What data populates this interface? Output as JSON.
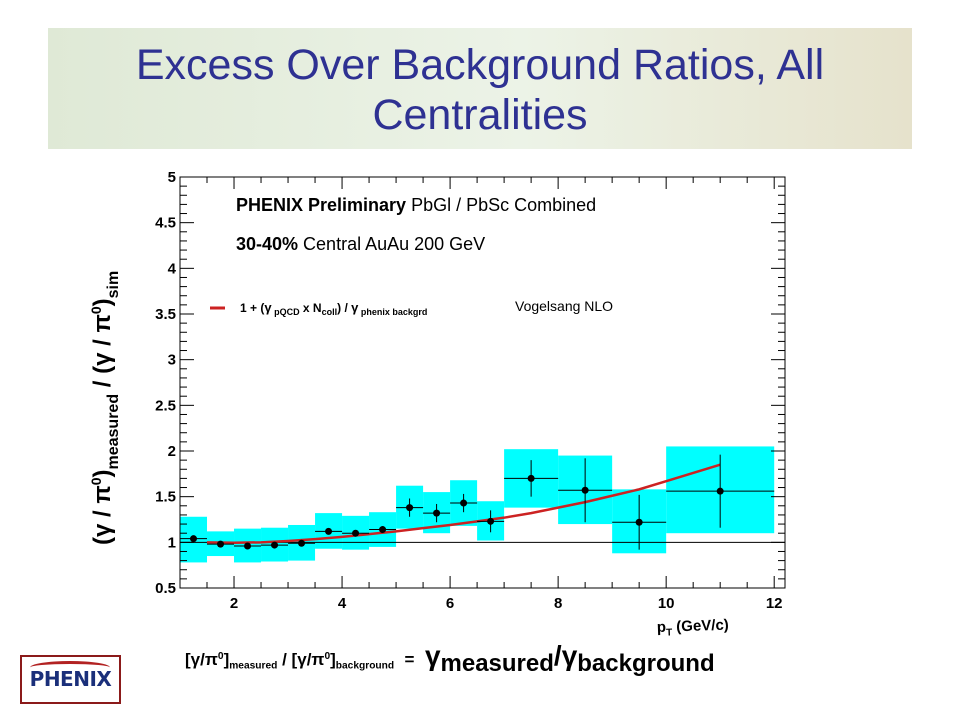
{
  "slide": {
    "title": "Excess Over Background Ratios,  All Centralities"
  },
  "colors": {
    "title": "#2e3192",
    "band_fill": "#00ffff",
    "curve": "#cc2222",
    "marker": "#000000"
  },
  "chart_data": {
    "type": "scatter",
    "title": "",
    "xlabel": "pT (GeV/c)",
    "ylabel": "(γ / π0)measured / (γ / π0)sim",
    "xlim": [
      1,
      12.2
    ],
    "ylim": [
      0.5,
      5
    ],
    "x_ticks": [
      2,
      4,
      6,
      8,
      10,
      12
    ],
    "y_ticks": [
      0.5,
      1,
      1.5,
      2,
      2.5,
      3,
      3.5,
      4,
      4.5,
      5
    ],
    "reference_line_y": 1,
    "annotations": {
      "line1_bold": "PHENIX Preliminary",
      "line1_rest": "PbGl / PbSc Combined",
      "line2_bold": "30-40%",
      "line2_rest": "Central AuAu 200 GeV"
    },
    "legend": {
      "formula_parts": [
        "1 + (",
        "γ",
        " pQCD",
        " x N",
        "coll",
        ") / ",
        "γ",
        " phenix backgrd"
      ],
      "label": "Vogelsang NLO"
    },
    "points": [
      {
        "x": 1.25,
        "y": 1.04,
        "xerr": 0.25,
        "yerr": 0.0,
        "sys": [
          0.78,
          1.28
        ]
      },
      {
        "x": 1.75,
        "y": 0.98,
        "xerr": 0.25,
        "yerr": 0.0,
        "sys": [
          0.85,
          1.12
        ]
      },
      {
        "x": 2.25,
        "y": 0.96,
        "xerr": 0.25,
        "yerr": 0.0,
        "sys": [
          0.78,
          1.15
        ]
      },
      {
        "x": 2.75,
        "y": 0.97,
        "xerr": 0.25,
        "yerr": 0.0,
        "sys": [
          0.79,
          1.16
        ]
      },
      {
        "x": 3.25,
        "y": 0.99,
        "xerr": 0.25,
        "yerr": 0.0,
        "sys": [
          0.8,
          1.19
        ]
      },
      {
        "x": 3.75,
        "y": 1.12,
        "xerr": 0.25,
        "yerr": 0.0,
        "sys": [
          0.93,
          1.32
        ]
      },
      {
        "x": 4.25,
        "y": 1.1,
        "xerr": 0.25,
        "yerr": 0.0,
        "sys": [
          0.92,
          1.29
        ]
      },
      {
        "x": 4.75,
        "y": 1.14,
        "xerr": 0.25,
        "yerr": 0.0,
        "sys": [
          0.95,
          1.33
        ]
      },
      {
        "x": 5.25,
        "y": 1.38,
        "xerr": 0.25,
        "yerr": 0.1,
        "sys": [
          1.15,
          1.62
        ]
      },
      {
        "x": 5.75,
        "y": 1.32,
        "xerr": 0.25,
        "yerr": 0.1,
        "sys": [
          1.1,
          1.55
        ]
      },
      {
        "x": 6.25,
        "y": 1.43,
        "xerr": 0.25,
        "yerr": 0.1,
        "sys": [
          1.18,
          1.68
        ]
      },
      {
        "x": 6.75,
        "y": 1.23,
        "xerr": 0.25,
        "yerr": 0.12,
        "sys": [
          1.02,
          1.45
        ]
      },
      {
        "x": 7.5,
        "y": 1.7,
        "xerr": 0.5,
        "yerr": 0.2,
        "sys": [
          1.38,
          2.02
        ]
      },
      {
        "x": 8.5,
        "y": 1.57,
        "xerr": 0.5,
        "yerr": 0.35,
        "sys": [
          1.2,
          1.95
        ]
      },
      {
        "x": 9.5,
        "y": 1.22,
        "xerr": 0.5,
        "yerr": 0.3,
        "sys": [
          0.88,
          1.58
        ]
      },
      {
        "x": 11.0,
        "y": 1.56,
        "xerr": 1.0,
        "yerr": 0.4,
        "sys": [
          1.1,
          2.05
        ]
      }
    ],
    "curve": {
      "name": "Vogelsang NLO",
      "x": [
        1.5,
        2,
        2.5,
        3,
        3.5,
        4,
        4.5,
        5,
        5.5,
        6,
        6.5,
        7,
        7.5,
        8,
        8.5,
        9,
        9.5,
        10,
        10.5,
        11
      ],
      "y": [
        1.0,
        0.995,
        1.0,
        1.015,
        1.035,
        1.06,
        1.09,
        1.12,
        1.155,
        1.19,
        1.23,
        1.27,
        1.32,
        1.38,
        1.44,
        1.51,
        1.58,
        1.67,
        1.76,
        1.85
      ]
    }
  },
  "formula": {
    "lhs_open": "[",
    "gamma": "γ",
    "slash": "/",
    "pi": "π",
    "zero": "0",
    "close": "]",
    "measured": "measured",
    "mid": " / [",
    "background": "background",
    "equals": "=",
    "rhs_slash": "/",
    "rhs_measured": "measured",
    "rhs_background": "background"
  },
  "logo": {
    "text": "PHENIX"
  }
}
